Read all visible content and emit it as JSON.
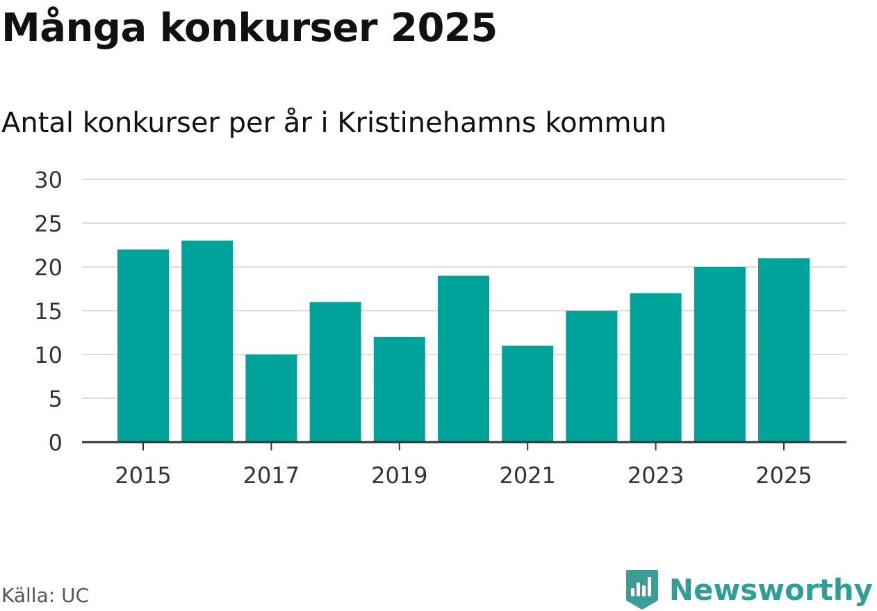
{
  "title": "Många konkurser 2025",
  "subtitle": "Antal konkurser per år i Kristinehamns kommun",
  "source": "Källa: UC",
  "brand": {
    "name": "Newsworthy",
    "logo_icon": "bar-chart-bookmark-icon",
    "color": "#3a9e96"
  },
  "chart_data": {
    "type": "bar",
    "categories": [
      "2015",
      "2016",
      "2017",
      "2018",
      "2019",
      "2020",
      "2021",
      "2022",
      "2023",
      "2024",
      "2025"
    ],
    "values": [
      22,
      23,
      10,
      16,
      12,
      19,
      11,
      15,
      17,
      20,
      21
    ],
    "x_tick_labels": [
      "2015",
      "2017",
      "2019",
      "2021",
      "2023",
      "2025"
    ],
    "y_ticks": [
      0,
      5,
      10,
      15,
      20,
      25,
      30
    ],
    "ylim": [
      0,
      30
    ],
    "grid": true,
    "bar_color": "#00a39a"
  }
}
